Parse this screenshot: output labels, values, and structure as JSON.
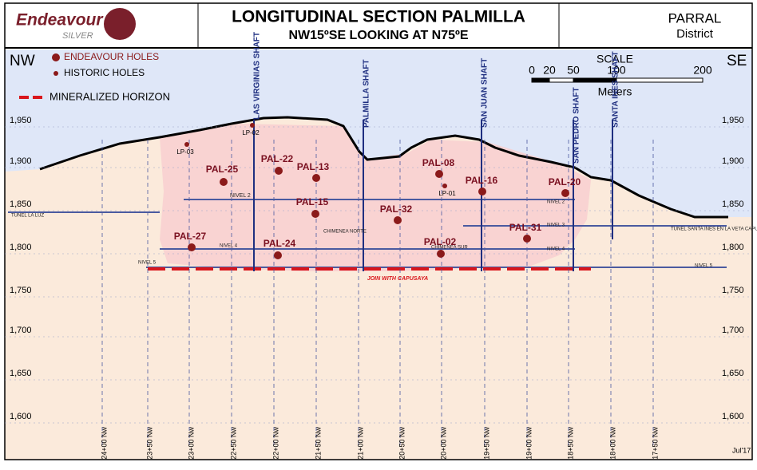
{
  "header": {
    "company": "Endeavour",
    "company_sub": "SILVER",
    "title": "LONGITUDINAL SECTION PALMILLA",
    "subtitle": "NW15ºSE LOOKING AT N75ºE",
    "region": "PARRAL",
    "region_sub": "District"
  },
  "directions": {
    "left": "NW",
    "right": "SE"
  },
  "legend": {
    "endeavour_holes": "ENDEAVOUR HOLES",
    "historic_holes": "HISTORIC HOLES",
    "mineralized_horizon": "MINERALIZED HORIZON"
  },
  "scale": {
    "title": "SCALE",
    "ticks": [
      "0",
      "20",
      "50",
      "100",
      "200"
    ],
    "unit": "Meters"
  },
  "elevations": [
    "1,950",
    "1,900",
    "1,850",
    "1,800",
    "1,750",
    "1,700",
    "1,650",
    "1,600"
  ],
  "sections": [
    "24+00 Nw",
    "23+50 Nw",
    "23+00 Nw",
    "22+50 Nw",
    "22+00 Nw",
    "21+50 Nw",
    "21+00 Nw",
    "20+50 Nw",
    "20+00 Nw",
    "19+50 Nw",
    "19+00 Nw",
    "18+50 Nw",
    "18+00 Nw",
    "17+50 Nw"
  ],
  "shafts": [
    "LAS VIRGINIAS SHAFT",
    "PALMILLA SHAFT",
    "SAN JUAN SHAFT",
    "SAN PEDRO SHAFT",
    "SANTA INES SHAFT"
  ],
  "endeavour_holes": [
    "PAL-25",
    "PAL-22",
    "PAL-13",
    "PAL-08",
    "PAL-16",
    "PAL-20",
    "PAL-15",
    "PAL-32",
    "PAL-27",
    "PAL-24",
    "PAL-02",
    "PAL-31"
  ],
  "historic_holes": [
    "LP-03",
    "LP-02",
    "LP-01"
  ],
  "annotations": [
    "NIVEL 2",
    "NIVEL 2",
    "NIVEL 3",
    "NIVEL 4",
    "NIVEL 4",
    "NIVEL 5",
    "NIVEL 5",
    "TUNEL LA LUZ",
    "CHIMENEA NORTE",
    "CHIMENEA SUR",
    "TUNEL SANTA INES EN LA VETA CAPUZAYA",
    "JOIN WITH CAPUSAYA"
  ],
  "date": "Jul'17"
}
